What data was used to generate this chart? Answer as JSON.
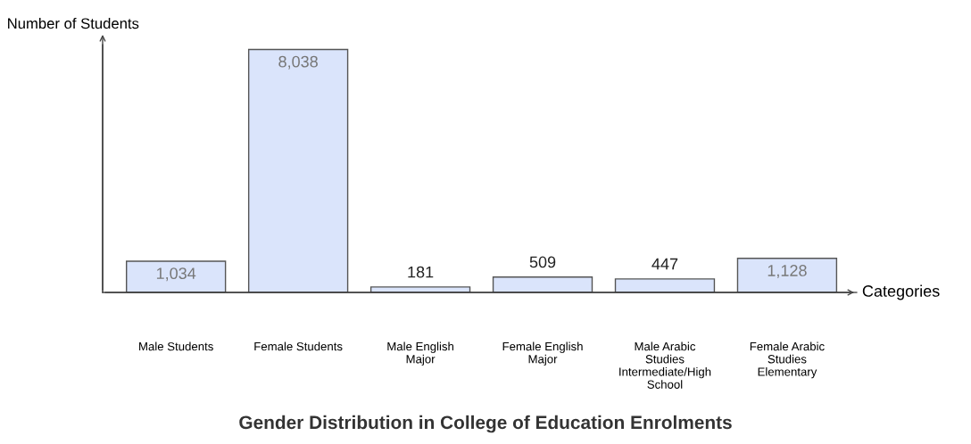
{
  "chart_data": {
    "type": "bar",
    "title": "Gender Distribution in College of Education Enrolments",
    "xlabel": "Categories",
    "ylabel": "Number of Students",
    "categories": [
      "Male Students",
      "Female Students",
      "Male English Major",
      "Female English Major",
      "Male Arabic Studies Intermediate/High School",
      "Female Arabic Studies Elementary"
    ],
    "values": [
      1034,
      8038,
      181,
      509,
      447,
      1128
    ],
    "value_labels": [
      "1,034",
      "8,038",
      "181",
      "509",
      "447",
      "1,128"
    ],
    "color": "#dae4fb",
    "grid": false,
    "legend": false
  }
}
